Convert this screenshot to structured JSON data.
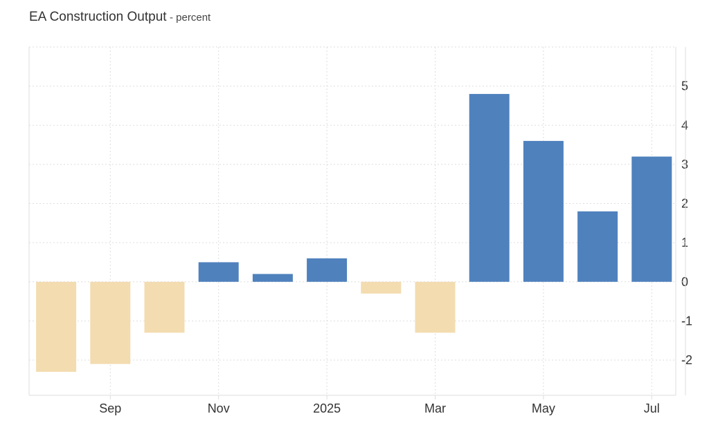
{
  "header": {
    "title": "EA Construction Output",
    "subtitle": "- percent"
  },
  "colors": {
    "positive": "#4f81bd",
    "negative": "#f3dcb0",
    "grid": "#dddddd",
    "frame": "#dddddd"
  },
  "chart_data": {
    "type": "bar",
    "title": "EA Construction Output",
    "subtitle": "percent",
    "categories": [
      "Aug 2024",
      "Sep 2024",
      "Oct 2024",
      "Nov 2024",
      "Dec 2024",
      "Jan 2025",
      "Feb 2025",
      "Mar 2025",
      "Apr 2025",
      "May 2025",
      "Jun 2025",
      "Jul 2025"
    ],
    "values": [
      -2.3,
      -2.1,
      -1.3,
      0.5,
      0.2,
      0.6,
      -0.3,
      -1.3,
      4.8,
      3.6,
      1.8,
      3.2
    ],
    "x_ticks": [
      {
        "label": "Sep",
        "index": 1
      },
      {
        "label": "Nov",
        "index": 3
      },
      {
        "label": "2025",
        "index": 5
      },
      {
        "label": "Mar",
        "index": 7
      },
      {
        "label": "May",
        "index": 9
      },
      {
        "label": "Jul",
        "index": 11
      }
    ],
    "y_ticks": [
      -2,
      -1,
      0,
      1,
      2,
      3,
      4,
      5
    ],
    "ylim": [
      -2.9,
      6.0
    ],
    "xlabel": "",
    "ylabel": "",
    "grid": true,
    "y_axis_side": "right"
  }
}
